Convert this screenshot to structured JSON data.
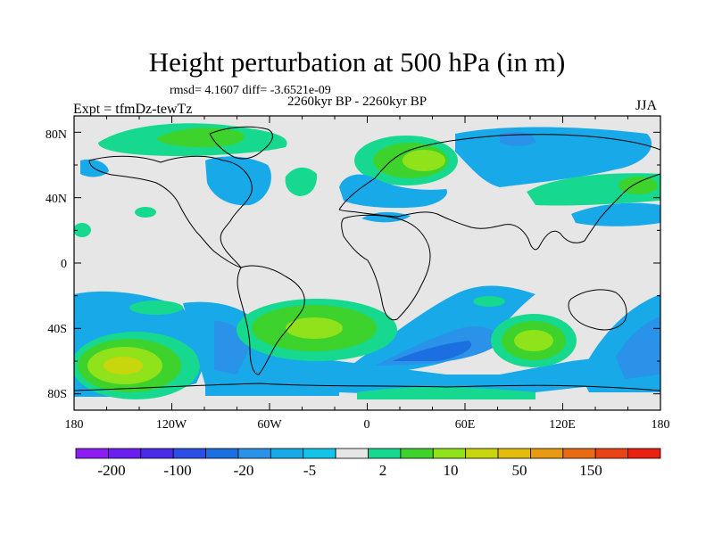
{
  "title": "Height perturbation at 500 hPa (in m)",
  "stats": "rmsd= 4.1607 diff= -3.6521e-09",
  "period": "2260kyr BP - 2260kyr BP",
  "experiment": "Expt = tfmDz-tewTz",
  "season": "JJA",
  "map": {
    "projection": "cylindrical equidistant",
    "lon_range": [
      -180,
      180
    ],
    "lat_range": [
      -90,
      90
    ],
    "x_tick_labels": [
      "180",
      "120W",
      "60W",
      "0",
      "60E",
      "120E",
      "180"
    ],
    "y_tick_labels": [
      "80N",
      "40N",
      "0",
      "40S",
      "80S"
    ]
  },
  "colorbar": {
    "labels": [
      "-200",
      "-100",
      "-20",
      "-5",
      "2",
      "10",
      "50",
      "150"
    ],
    "colors": [
      "#8c1cf2",
      "#6a1ef0",
      "#4a2be8",
      "#2a4ee6",
      "#1b6fe0",
      "#2a92e8",
      "#17a9e8",
      "#13c4e8",
      "#e6e6e6",
      "#16d98f",
      "#3ed22c",
      "#90e21a",
      "#c8d60e",
      "#e4bc0c",
      "#e79a12",
      "#e86b14",
      "#ea4416",
      "#ea2012"
    ]
  }
}
